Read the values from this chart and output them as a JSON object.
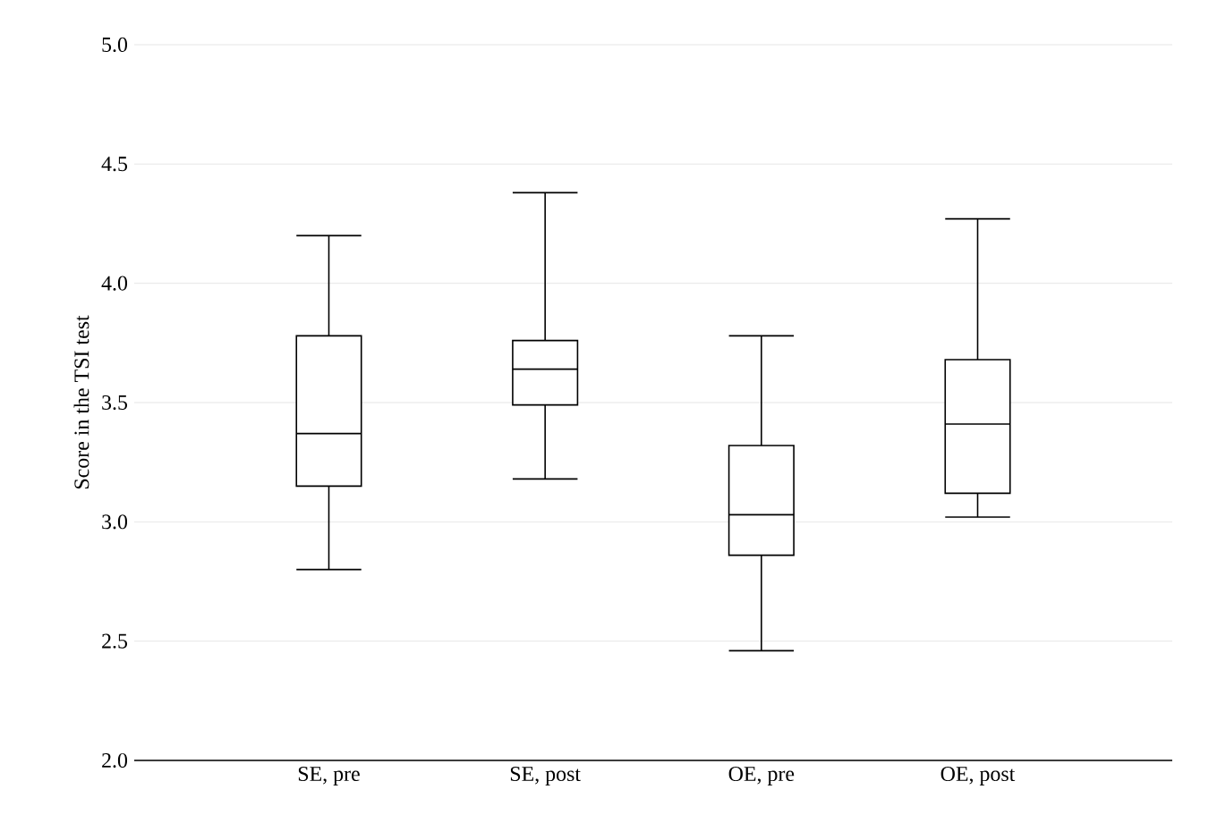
{
  "chart_data": {
    "type": "box",
    "ylabel": "Score in the TSI test",
    "categories": [
      "SE, pre",
      "SE, post",
      "OE, pre",
      "OE, post"
    ],
    "boxes": [
      {
        "low": 2.8,
        "q1": 3.15,
        "median": 3.37,
        "q3": 3.78,
        "high": 4.2
      },
      {
        "low": 3.18,
        "q1": 3.49,
        "median": 3.64,
        "q3": 3.76,
        "high": 4.38
      },
      {
        "low": 2.46,
        "q1": 2.86,
        "median": 3.03,
        "q3": 3.32,
        "high": 3.78
      },
      {
        "low": 3.02,
        "q1": 3.12,
        "median": 3.41,
        "q3": 3.68,
        "high": 4.27
      }
    ],
    "color": "#000000",
    "ylim": [
      2.0,
      5.0
    ],
    "yticks": [
      {
        "value": 2.0,
        "label": "2.0"
      },
      {
        "value": 2.5,
        "label": "2.5"
      },
      {
        "value": 3.0,
        "label": "3.0"
      },
      {
        "value": 3.5,
        "label": "3.5"
      },
      {
        "value": 4.0,
        "label": "4.0"
      },
      {
        "value": 4.5,
        "label": "4.5"
      },
      {
        "value": 5.0,
        "label": "5.0"
      }
    ],
    "grid": "y"
  }
}
